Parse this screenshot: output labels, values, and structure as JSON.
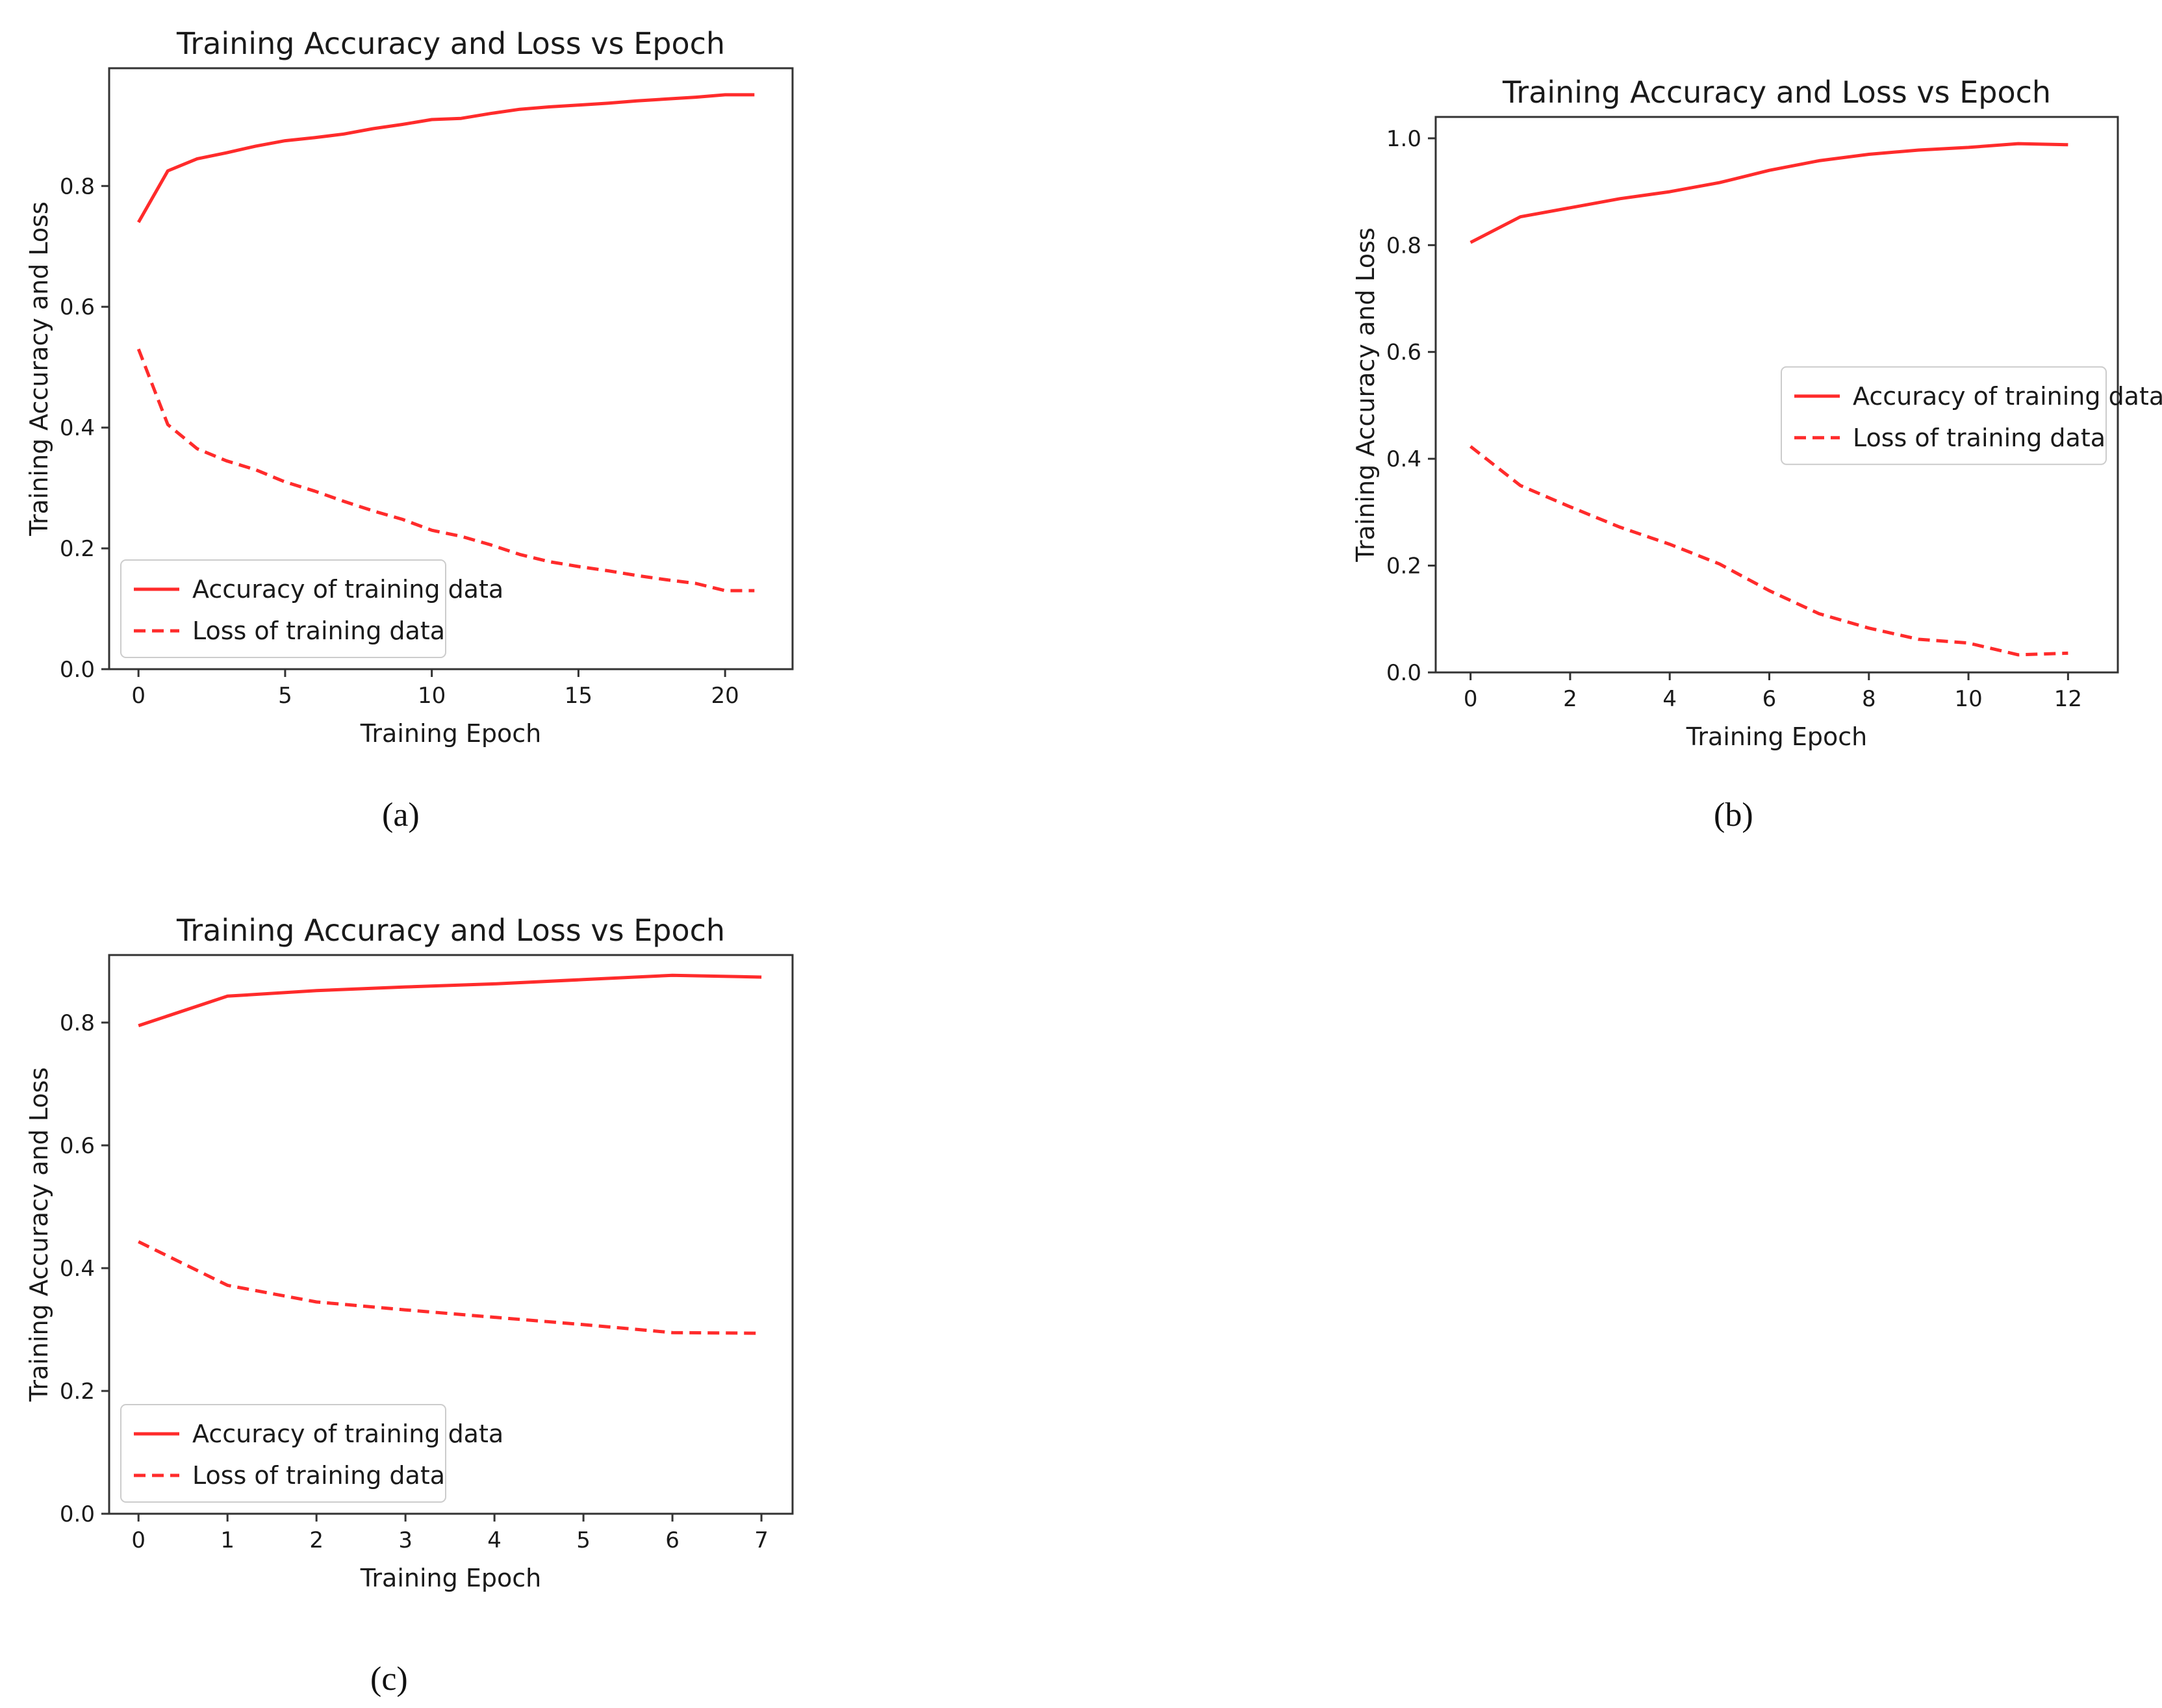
{
  "line_color": "#ff2b2b",
  "chart_data": [
    {
      "type": "line",
      "caption": "(a)",
      "title": "Training Accuracy and Loss vs Epoch",
      "xlabel": "Training Epoch",
      "ylabel": "Training Accuracy and Loss",
      "xlim": [
        -1,
        22.3
      ],
      "ylim": [
        0,
        0.995
      ],
      "xticks": [
        0,
        5,
        10,
        15,
        20
      ],
      "yticks": [
        0.0,
        0.2,
        0.4,
        0.6,
        0.8
      ],
      "ytick_labels": [
        "0.0",
        "0.2",
        "0.4",
        "0.6",
        "0.8"
      ],
      "legend_position": "lower-left",
      "x": [
        0,
        1,
        2,
        3,
        4,
        5,
        6,
        7,
        8,
        9,
        10,
        11,
        12,
        13,
        14,
        15,
        16,
        17,
        18,
        19,
        20,
        21
      ],
      "series": [
        {
          "name": "Accuracy of training data",
          "style": "solid",
          "values": [
            0.74,
            0.825,
            0.845,
            0.855,
            0.866,
            0.875,
            0.88,
            0.886,
            0.895,
            0.902,
            0.91,
            0.912,
            0.92,
            0.927,
            0.931,
            0.934,
            0.937,
            0.941,
            0.944,
            0.947,
            0.951,
            0.951
          ]
        },
        {
          "name": "Loss of training data",
          "style": "dashed",
          "values": [
            0.53,
            0.405,
            0.365,
            0.345,
            0.33,
            0.31,
            0.295,
            0.278,
            0.262,
            0.248,
            0.23,
            0.22,
            0.206,
            0.19,
            0.178,
            0.17,
            0.163,
            0.155,
            0.148,
            0.142,
            0.13,
            0.13
          ]
        }
      ]
    },
    {
      "type": "line",
      "caption": "(b)",
      "title": "Training Accuracy and Loss vs Epoch",
      "xlabel": "Training Epoch",
      "ylabel": "Training Accuracy and Loss",
      "xlim": [
        -0.7,
        13.0
      ],
      "ylim": [
        0,
        1.04
      ],
      "xticks": [
        0,
        2,
        4,
        6,
        8,
        10,
        12
      ],
      "yticks": [
        0.0,
        0.2,
        0.4,
        0.6,
        0.8,
        1.0
      ],
      "ytick_labels": [
        "0.0",
        "0.2",
        "0.4",
        "0.6",
        "0.8",
        "1.0"
      ],
      "legend_position": "center-right",
      "x": [
        0,
        1,
        2,
        3,
        4,
        5,
        6,
        7,
        8,
        9,
        10,
        11,
        12
      ],
      "series": [
        {
          "name": "Accuracy of training data",
          "style": "solid",
          "values": [
            0.805,
            0.853,
            0.87,
            0.887,
            0.9,
            0.917,
            0.94,
            0.958,
            0.97,
            0.978,
            0.983,
            0.99,
            0.988
          ]
        },
        {
          "name": "Loss of training data",
          "style": "dashed",
          "values": [
            0.423,
            0.35,
            0.31,
            0.272,
            0.24,
            0.203,
            0.153,
            0.11,
            0.083,
            0.062,
            0.055,
            0.033,
            0.036
          ]
        }
      ]
    },
    {
      "type": "line",
      "caption": "(c)",
      "title": "Training Accuracy and Loss vs Epoch",
      "xlabel": "Training Epoch",
      "ylabel": "Training Accuracy and Loss",
      "xlim": [
        -0.33,
        7.35
      ],
      "ylim": [
        0,
        0.91
      ],
      "xticks": [
        0,
        1,
        2,
        3,
        4,
        5,
        6,
        7
      ],
      "yticks": [
        0.0,
        0.2,
        0.4,
        0.6,
        0.8
      ],
      "ytick_labels": [
        "0.0",
        "0.2",
        "0.4",
        "0.6",
        "0.8"
      ],
      "legend_position": "lower-left",
      "x": [
        0,
        1,
        2,
        3,
        4,
        5,
        6,
        7
      ],
      "series": [
        {
          "name": "Accuracy of training data",
          "style": "solid",
          "values": [
            0.795,
            0.843,
            0.852,
            0.858,
            0.863,
            0.87,
            0.877,
            0.874
          ]
        },
        {
          "name": "Loss of training data",
          "style": "dashed",
          "values": [
            0.443,
            0.372,
            0.345,
            0.332,
            0.32,
            0.308,
            0.295,
            0.294
          ]
        }
      ]
    }
  ]
}
